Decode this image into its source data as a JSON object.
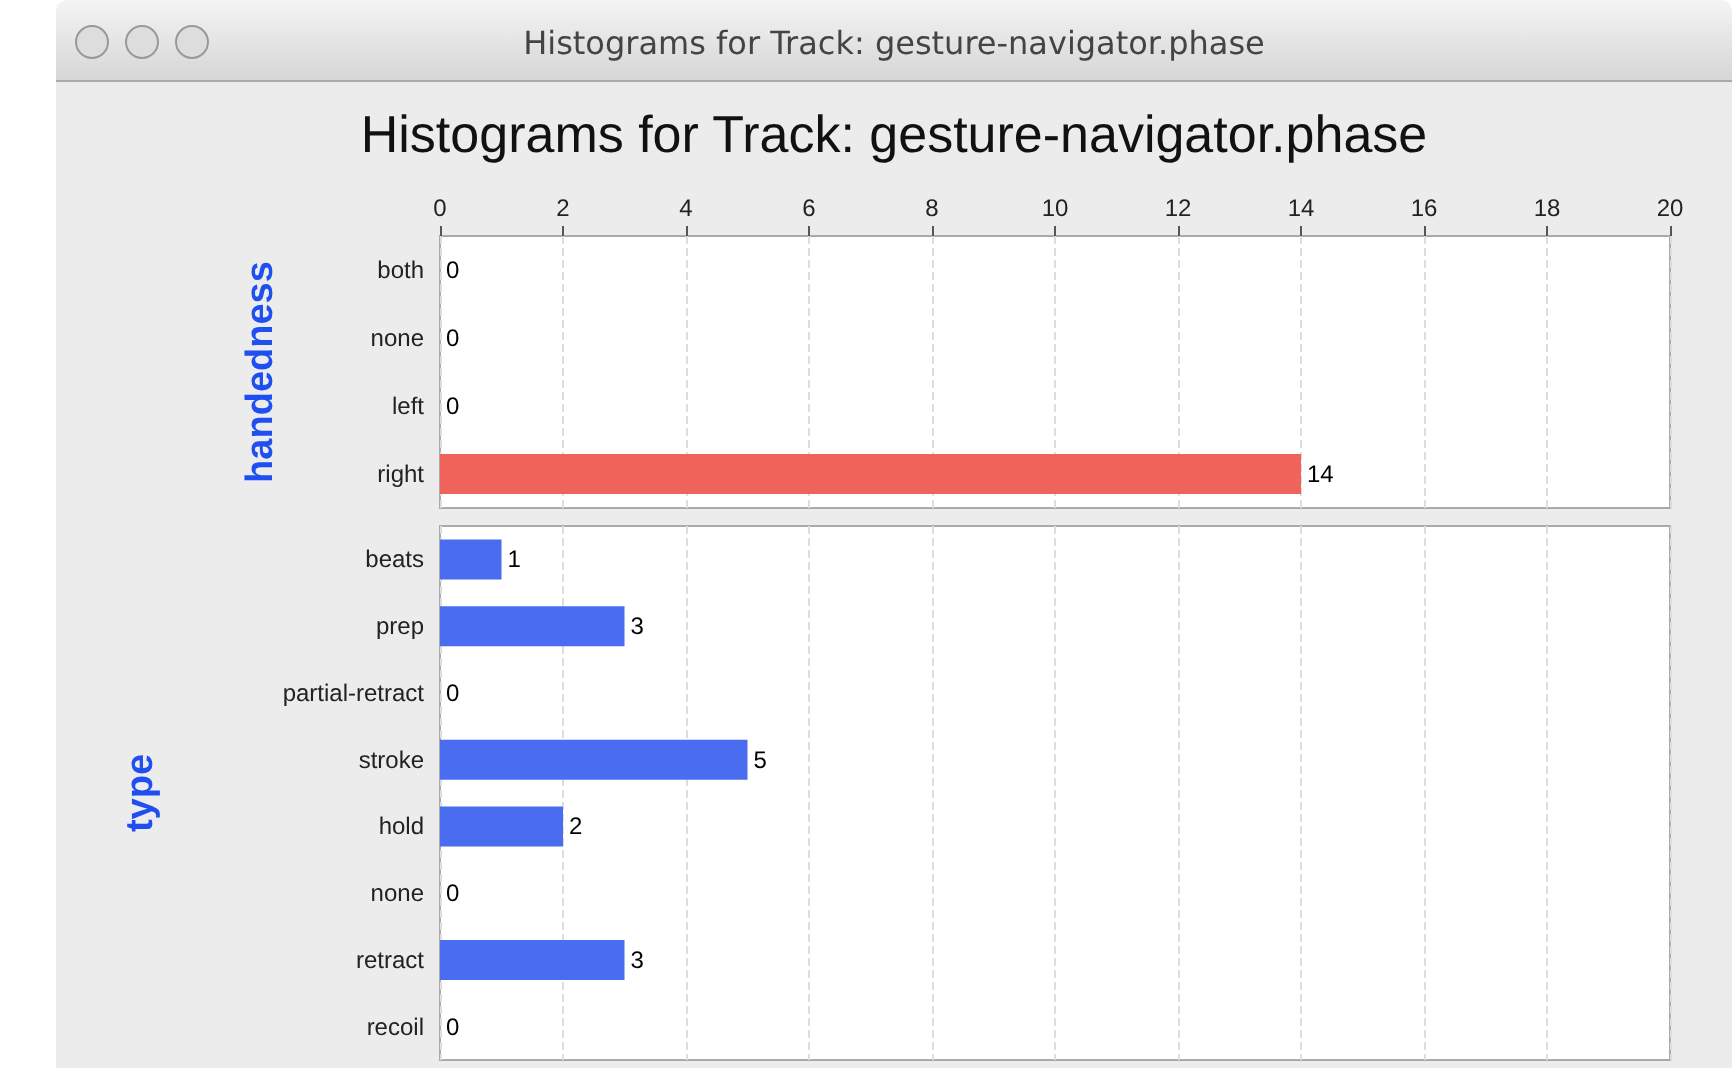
{
  "chart_data": [
    {
      "type": "bar",
      "orientation": "horizontal",
      "title": "Histograms for Track: gesture-navigator.phase",
      "annotations": [
        "Histograms for Track: gesture-navigator.phase"
      ],
      "ylabel": "handedness",
      "categories": [
        "both",
        "none",
        "left",
        "right"
      ],
      "values": [
        0,
        0,
        0,
        14
      ],
      "color": "#f0635a",
      "xlim": [
        0,
        20
      ],
      "xticks": [
        0,
        2,
        4,
        6,
        8,
        10,
        12,
        14,
        16,
        18,
        20
      ],
      "grid": "x",
      "data_labels": true
    },
    {
      "type": "bar",
      "orientation": "horizontal",
      "ylabel": "type",
      "categories": [
        "beats",
        "prep",
        "partial-retract",
        "stroke",
        "hold",
        "none",
        "retract",
        "recoil"
      ],
      "values": [
        1,
        3,
        0,
        5,
        2,
        0,
        3,
        0
      ],
      "color": "#4a6cf0",
      "xlim": [
        0,
        20
      ],
      "xticks": [
        0,
        2,
        4,
        6,
        8,
        10,
        12,
        14,
        16,
        18,
        20
      ],
      "grid": "x",
      "data_labels": true,
      "tick_labels": "y"
    }
  ]
}
